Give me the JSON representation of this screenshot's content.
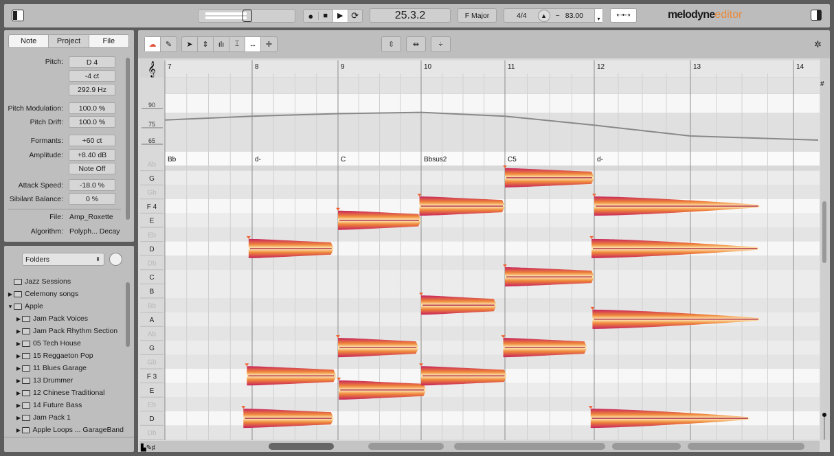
{
  "app": {
    "brand": "melodyne",
    "brand_suffix": "editor",
    "accent": "#e9893a"
  },
  "transport": {
    "position": "25.3.2",
    "key": "F Major",
    "time_signature": "4/4",
    "tempo_prefix": "~",
    "tempo": "83.00",
    "icons": [
      "record-icon",
      "stop-icon",
      "play-icon",
      "loop-icon"
    ]
  },
  "inspector": {
    "tabs": [
      "Note",
      "Project",
      "File"
    ],
    "selected_tab": "Note",
    "pitch_label": "Pitch:",
    "pitch": "D 4",
    "cents": "-4 ct",
    "frequency": "292.9 Hz",
    "pitch_mod_label": "Pitch Modulation:",
    "pitch_mod": "100.0 %",
    "pitch_drift_label": "Pitch Drift:",
    "pitch_drift": "100.0 %",
    "formants_label": "Formants:",
    "formants": "+60 ct",
    "amplitude_label": "Amplitude:",
    "amplitude": "+8.40 dB",
    "note_off": "Note Off",
    "attack_label": "Attack Speed:",
    "attack": "-18.0 %",
    "sibilant_label": "Sibilant Balance:",
    "sibilant": "0 %",
    "file_label": "File:",
    "file": "Amp_Roxette",
    "algorithm_label": "Algorithm:",
    "algorithm": "Polyph... Decay"
  },
  "browser": {
    "dropdown": "Folders",
    "items": [
      {
        "label": "Jazz Sessions",
        "level": 0,
        "arrow": ""
      },
      {
        "label": "Celemony songs",
        "level": 0,
        "arrow": "▶"
      },
      {
        "label": "Apple",
        "level": 0,
        "arrow": "▼"
      },
      {
        "label": "Jam Pack Voices",
        "level": 1,
        "arrow": "▶"
      },
      {
        "label": "Jam Pack Rhythm Section",
        "level": 1,
        "arrow": "▶"
      },
      {
        "label": "05 Tech House",
        "level": 1,
        "arrow": "▶"
      },
      {
        "label": "15 Reggaeton Pop",
        "level": 1,
        "arrow": "▶"
      },
      {
        "label": "11 Blues Garage",
        "level": 1,
        "arrow": "▶"
      },
      {
        "label": "13 Drummer",
        "level": 1,
        "arrow": "▶"
      },
      {
        "label": "12 Chinese Traditional",
        "level": 1,
        "arrow": "▶"
      },
      {
        "label": "14 Future Bass",
        "level": 1,
        "arrow": "▶"
      },
      {
        "label": "Jam Pack 1",
        "level": 1,
        "arrow": "▶"
      },
      {
        "label": "Apple Loops ... GarageBand",
        "level": 1,
        "arrow": "▶"
      }
    ]
  },
  "editor": {
    "bars": [
      "7",
      "8",
      "9",
      "10",
      "11",
      "12",
      "13",
      "14"
    ],
    "tempo_axis_labels": [
      "90",
      "75",
      "65"
    ],
    "tempo_curve": [
      [
        7,
        81
      ],
      [
        8,
        84
      ],
      [
        9,
        86
      ],
      [
        10,
        87
      ],
      [
        11,
        84
      ],
      [
        12,
        77
      ],
      [
        13,
        70
      ],
      [
        14,
        68
      ],
      [
        14.25,
        67.5
      ]
    ],
    "chords": [
      {
        "bar": 7,
        "name": "Bb"
      },
      {
        "bar": 8,
        "name": "d-"
      },
      {
        "bar": 9,
        "name": "C"
      },
      {
        "bar": 10,
        "name": "Bbsus2"
      },
      {
        "bar": 11,
        "name": "C5"
      },
      {
        "bar": 12,
        "name": "d-"
      }
    ],
    "pitch_rows": [
      "Ab",
      "G",
      "Gb",
      "F 4",
      "E",
      "Eb",
      "D",
      "Db",
      "C",
      "B",
      "Bb",
      "A",
      "Ab",
      "G",
      "Gb",
      "F 3",
      "E",
      "Eb",
      "D",
      "Db"
    ],
    "notes": [
      {
        "pitch": "D 4",
        "start": 7.96,
        "end": 8.95
      },
      {
        "pitch": "F 3",
        "start": 7.94,
        "end": 8.98
      },
      {
        "pitch": "D 3",
        "start": 7.9,
        "end": 8.95
      },
      {
        "pitch": "E 4",
        "start": 9.0,
        "end": 10.0
      },
      {
        "pitch": "G 3",
        "start": 9.0,
        "end": 9.97
      },
      {
        "pitch": "E 3",
        "start": 9.01,
        "end": 10.06
      },
      {
        "pitch": "F 4",
        "start": 9.98,
        "end": 11.0
      },
      {
        "pitch": "Bb 3",
        "start": 10.0,
        "end": 10.9
      },
      {
        "pitch": "F 3",
        "start": 10.0,
        "end": 11.02
      },
      {
        "pitch": "G 4",
        "start": 11.0,
        "end": 12.0
      },
      {
        "pitch": "C 4",
        "start": 11.0,
        "end": 12.0
      },
      {
        "pitch": "G 3",
        "start": 10.98,
        "end": 11.92
      },
      {
        "pitch": "F 4",
        "start": 12.0,
        "end": 13.68
      },
      {
        "pitch": "D 4",
        "start": 11.97,
        "end": 13.67
      },
      {
        "pitch": "A 3",
        "start": 11.98,
        "end": 13.68
      },
      {
        "pitch": "D 3",
        "start": 11.96,
        "end": 13.58
      }
    ],
    "note_colors": {
      "outer": "#c8245a",
      "mid": "#f08a3c",
      "inner": "#fff3c0"
    }
  }
}
